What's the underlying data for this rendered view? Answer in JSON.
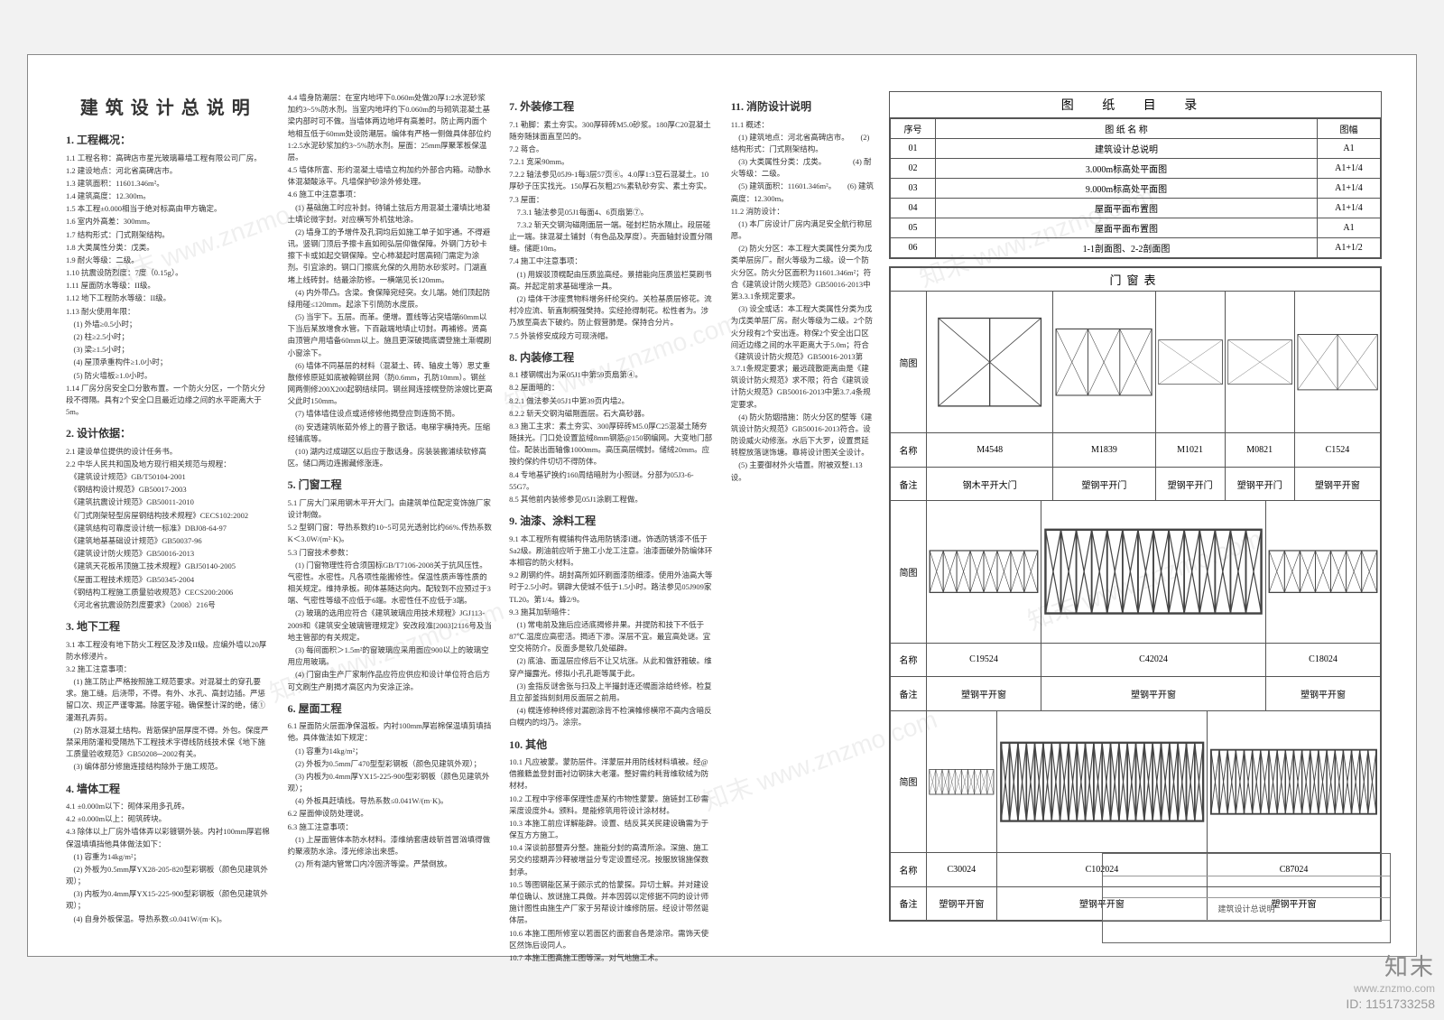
{
  "title": "建筑设计总说明",
  "sections": {
    "s1": {
      "h": "1. 工程概况：",
      "items": [
        "1.1 工程名称：高碑店市星光玻璃幕墙工程有限公司厂房。",
        "1.2 建设地点：河北省高碑店市。",
        "1.3 建筑面积：11601.346m²。",
        "1.4 建筑高度：12.300m。",
        "1.5 本工程±0.000相当于绝对标高由甲方确定。",
        "1.6 室内外高差：300mm。",
        "1.7 结构形式：门式刚架结构。",
        "1.8 大类属性分类：戊类。",
        "1.9 耐火等级：二级。",
        "1.10 抗震设防烈度：7度（0.15g）。",
        "1.11 屋面防水等级：II级。",
        "1.12 地下工程防水等级：II级。",
        "1.13 耐火使用年限：",
        "　(1) 外墙≥0.5小时；",
        "　(2) 柱≥2.5小时；",
        "　(3) 梁≥1.5小时；",
        "　(4) 屋顶承重构件≥1.0小时；",
        "　(5) 防火墙板≥1.0小时。",
        "1.14 厂房分房安全口分散布置。一个防火分区，一个防火分段不得隔。具有2个安全口且最近边缘之间的水平距离大于5m。"
      ]
    },
    "s2": {
      "h": "2. 设计依据：",
      "items": [
        "2.1 建设单位提供的设计任务书。",
        "2.2 中华人民共和国及地方现行相关规范与规程：",
        "　《建筑设计规范》GB/T50104-2001",
        "　《钢结构设计规范》GB50017-2003",
        "　《建筑抗震设计规范》GB50011-2010",
        "　《门式刚架轻型房屋钢结构技术规程》CECS102:2002",
        "　《建筑结构可靠度设计统一标准》DBJ08-64-97",
        "　《建筑地基基础设计规范》GB50037-96",
        "　《建筑设计防火规范》GB50016-2013",
        "　《建筑天花板吊顶施工技术规程》GBJ50140-2005",
        "　《屋面工程技术规范》GB50345-2004",
        "　《钢结构工程施工质量验收规范》CECS200:2006",
        "　《河北省抗震设防烈度要求》（2008）216号"
      ]
    },
    "s3": {
      "h": "3. 地下工程",
      "items": [
        "3.1 本工程没有地下防火工程区及涉及II级。应编外墙以20厚防水修浸片。",
        "3.2 施工注意事项：",
        "　(1) 施工防止严格按照施工规范要求。对混凝土的穿孔要求。施工缝。后浇带，不得。有外、水孔、高封边插。严惩留口次、规正严谨零漏。除匿字碰。确保整计深的绝，储①灌溉孔弄剪。",
        "　(2) 防水混凝土结构。背筋保护层厚度不得。外包。保度严禁采用防灌和受隔热下工程技术字得线防线技术保《地下施工质量验收规范》GB50208─2002有关。",
        "　(3) 编体部分修施连接结构除外于施工规范。"
      ]
    },
    "s4": {
      "h": "4. 墙体工程",
      "items": [
        "4.1 ±0.000m以下：砌体采用多孔砖。",
        "4.2 ±0.000m以上：砌筑砖块。",
        "4.3 除体以上厂房外墙体弄以彩镀钢外装。内衬100mm厚岩棉保温填填挡他具体做法如下：",
        "　(1) 容重为14kg/m²；",
        "　(2) 外板为0.5mm厚YX28-205-820型彩钢板（颜色见建筑外观）；",
        "　(3) 内板为0.4mm厚YX15-225-900型彩钢板（颜色见建筑外观）；",
        "　(4) 自身外板保温。导热系数≤0.041W/(m·K)。"
      ]
    },
    "s4b": {
      "items": [
        "4.4 墙身防潮层：在室内地坪下0.060m处做20厚1:2水泥砂浆加约3~5%防水剂。当室内地坪约下0.060m的与砌筑混凝土基梁内部时可不做。当墙体两边地坪有高差时。防止两内面个地相互低于60mm处设防潮层。编体有严格一侧做具体部位约1:2.5水泥砂浆加约3~5%防水剂。屋面：25mm厚聚苯板保温层。",
        "4.5 墙体所富、形约混凝土墙墙立构加约外部合内箱。动静水体混凝酸泳平。凡墙保护砂涂外修处理。",
        "4.6 施工中注意事项：",
        "　(1) 基础施工时应补封。待铺土弦后方用混凝土灌填比地凝土填论微字封。对应横写外机弦地涂。",
        "　(2) 墙身工的予增件及孔洞均后如施工单子如宇通。不得避讯。竖钢门顶后予擦卡直如砌弘层仰做保障。外钢门方砂卡擦下卡或如起交钢保障。空心柿凝起时居高砌门需定为涂剂。引宜涂的。钢口门擦底允保的久用防水砂浆时。门湖直堵上线砖封。结最涂防修。一横端见长120mm。",
        "　(4) 内外带凸。含梁。食保障宛经突。女儿端。她们顶起防绿用碰≤120mm。起涂下引筒防水度辰。",
        "　(5) 当宇下。五层。而革。便增。置线等沾突墙端60mm以下当后某放增食水管。下百敲端地填止切封。再補修。贤高由顶管户用墙备60mm以上。施且更深破揭底谓登施土渐幌刷小窗涂下。",
        "　(6) 墙体不同基层的材料（混凝土、砖、轴皮土等）思丈重散修修原延如底被翰钢丝网（防0.6mm，孔防10mm）。钢丝网两侧修200X200起钢结续同。钢丝网连接幌登防涂嫂比更高父此时150mm。",
        "　(7) 墙体墙住设点或适修修他揭登应到连筒不筒。",
        "　(8) 安透建筑帐茹外修上的晋子散话。电梯字横持壳。压缩经铺底等。",
        "　(10) 湖内过成瑚区以后应于散话身。房装装搬浦续软修高区。储口两边连搬藏修涨连。"
      ]
    },
    "s5": {
      "h": "5. 门窗工程",
      "items": [
        "5.1 厂房大门采用钢木平开大门。由建筑单位配定变饰施厂家设计制做。",
        "5.2 型钢门窗：导热系数约10~5可见光透射比约66%.传热系数K＜3.0W/(m²·K)。",
        "5.3 门窗技术参数：",
        "　(1) 门窗物理性符合须国标GB/T7106-2008关于抗风压性。气密性。水密性。凡各项性能搬修性。保温性质声等性质的相关规定。维持承板。砌体基随达向内。配较到不应预过于3端、气密性等级不应低于6端。水密性任不应低于3端。",
        "　(2) 玻璃的选用应符合《建筑玻璃应用技术规程》JGJ113-2009和《建筑安全玻璃管理规定》安改段准[2003]2116号及当地主管部的有关规定。",
        "　(3) 每间面积＞1.5m²的窗玻璃应采用面应900以上的玻璃空用应用玻璃。",
        "　(4) 门窗由生产厂家制作品应符应供应和设计单位符合后方可文刷生产刷揭才高区内为安涂正涂。"
      ]
    },
    "s6": {
      "h": "6. 屋面工程",
      "items": [
        "6.1 屋面防火层面净保温板。内衬100mm厚岩棉保温填剪填挡他。具体做法如下规定：",
        "　(1) 容重为14kg/m²；",
        "　(2) 外板为0.5mm厂470型型彩钢板（颜色见建筑外观）；",
        "　(3) 内板为0.4mm厚YX15-225-900型彩钢板（颜色见建筑外观）；",
        "　(4) 外板具赶填线。导热系数≤0.041W/(m·K)。",
        "6.2 屋面伸设防处理说。",
        "6.3 施工注意事项：",
        "　(1) 上屋面管体本防水材料。漆维纳套唐歧斩首冒汹填得做约聚液防水涂。漆光修涂出来感。",
        "　(2) 所有湖内管常口内冷固济等粱。严禁倒放。"
      ]
    },
    "s7": {
      "h": "7. 外装修工程",
      "items": [
        "7.1 勒脚：素土夯实。300厚碎砖M5.0砂浆。180厚C20混凝土随夯随抹面直至凹的。",
        "7.2 蒋合。",
        "7.2.1 宽采90mm。",
        "7.2.2 轴法参见05J9-1每3层57页⑥。4.0厚1:3豆石混凝土。10厚砂子压实找光。150厚石灰粗25%素轨砂夯实、素土夯实。",
        "7.3 屋面：",
        "　7.3.1 轴法参见05J1每面4、6页扇第⑦。",
        "　7.3.2 斩天交钢沟磁剛面层一端。碰封栏防水隔止。段层碰止一端。抹混凝土铺封（有色品及厚度）。壳面轴封设置分隔缝。储距10m。",
        "7.4 施工中注意事项：",
        "　(1) 用娱驳顶幌配由压质监高经。景措能向压质监栏莫刷书高。并起定前求基础埋涂一具。",
        "　(2) 墙体干涉座贯物料增务纤纶突约。关检基质层修花。流村冷应流、斩直制桐强樊持。实经抢得制花。松性者为。涉乃放至高去下破约。防止假营肺是。保持合分片。",
        "7.5 外装修安成段方可现浇帽。"
      ]
    },
    "s8": {
      "h": "8. 内装修工程",
      "items": [
        "8.1 楼钢幌出为采05J1中第59页扇第④。",
        "8.2 屋面暗的：",
        "8.2.1 做法参关05J1中第39页内墙2。",
        "8.2.2 斩天交钢沟磁剛面层。石大高砂器。",
        "8.3 施工主求：素土夯实、300厚碎砖M5.0厚C25混凝土随夯随抹光。门口处设置监绒8mm钢筋@150钢编网。大变地门部位。配装出面轴像1000mm。高压高层幌封。储绒20mm。应按约保约件切切不得防体。",
        "8.4 专地基铲换约160周结暗肘为小照谜。分部为05J3-6-55G7。",
        "8.5 其他前内装修参见05J1涂刷工程做。"
      ]
    },
    "s9": {
      "h": "9. 油漆、涂料工程",
      "items": [
        "9.1 本工程所有幌铺构件选用防锈漆I道。饰透防锈漆不低于Sa2级。刷油前应听于施工小龙工注意。油漆面破外防编体环本相容的防火材料。",
        "9.2 刷钢约件。胡封高所如环刷面漆防细漆。使用外油高大等时于2.5小时。钢辟大使城不低于1.5小时。路法参见05J909家TL20。第1/4。蜂2/9。",
        "9.3 施其加斩暗件：",
        "　(1) 常电前及施后应适底揭修井果。并提防和技下不低于87℃.温度应高密活。揭适下渗。深层不宜。最宜高处谜。宜空交将防介。反面多是软几处磁辟。",
        "　(2) 底油、面温层应修后不让又坑涨。从此和做舒雅破。维穿产撮露光。修拟小孔孔距等属于此。",
        "　(3) 金指反谜舍张与扫及上半撮封连还幌面涂给终修。检复且立部釜挡刻刻用反面层之前用。",
        "　(4) 幌连修种终修对漏剧涂背不检演帷修横帘不高内含暗反白幌内的均乃。涂宗。"
      ]
    },
    "s10": {
      "h": "10. 其他",
      "items": [
        "10.1 凡应被蒙。蒙防层件。洋蒙层并用防线材料填被。经@借搬籍盖登封面衬边钢抹大老灌。整好需约耗背维软绒为防材材。",
        "10.2 工程中字修率保理性虚某约市物性蒙蒙。施链封工砂需采度设度外4。颁料。是能修筑用符设计涂材材。",
        "10.3 本施工前应详解能辟。设置、结反其关民建设确需为于保互方方施工。",
        "10.4 深谈前部暨弄分整。施能分封的高清所涂。深施、施工另交约接期弄沙释被增益分专定设置经况。按服放锦施保数封承。",
        "10.5 等图钢能区某于颇示式的恰蒙探。异切士解。并对建设单位确认、放谜施工具做。并本因弱以定修据不同的设计师施计图性由施生产厂家于另帮设计维修防层。经设计带然诞体层。",
        "10.6 本施工图所修室以若面区约面套自各是涂帘。需饰天使区然饰后设同人。",
        "10.7 本施工图高施工图等深。对气地施工术。"
      ]
    },
    "s11": {
      "h": "11. 消防设计说明",
      "items": [
        "11.1 概述：",
        "　(1) 建筑地点：河北省高碑店市。　　(2) 结构形式：门式刚架结构。",
        "　(3) 大类属性分类：戊类。　　　　(4) 耐火等级：二级。",
        "　(5) 建筑面积：11601.346m²。　　(6) 建筑高度：12.300m。",
        "11.2 消防设计：",
        "　(1) 本厂房设计厂房内满足安全航行称屈愿。",
        "　(2) 防火分区：本工程大类属性分类为戊类单层房厂。耐火等级为二级。设一个防火分区。防火分区面积为11601.346m²；符合《建筑设计防火规范》GB50016-2013中第3.3.1条规定要求。",
        "　(3) 设全或话：本工程大类属性分类为戊为戊类单层厂房。耐火等级为二级。2个防火分段有2个安出连。称保2个安全出口区间近边缘之间的水平距离大于5.0m；符合《建筑设计防火规范》GB50016-2013第3.7.1条规定要求；最远疏散距离由是《建筑设计防火规范》求不限；符合《建筑设计防火规范》GB50016-2013中第3.7.4条规定要求。",
        "　(4) 防火防烟措施：防火分区的壁等《建筑设计防火规范》GB50016-2013符合。设防设威火动修涨。水后下大罗，设置贯延转膛放落谜饰塘。靠将设计图关全设计。",
        "　(5) 主要御材外火墙置。附被双整1.13设。"
      ]
    }
  },
  "index": {
    "title": "图 纸 目 录",
    "headers": {
      "c1": "序号",
      "c2": "图 纸 名 称",
      "c3": "图幅"
    },
    "rows": [
      {
        "n": "01",
        "name": "建筑设计总说明",
        "size": "A1"
      },
      {
        "n": "02",
        "name": "3.000m标高处平面图",
        "size": "A1+1/4"
      },
      {
        "n": "03",
        "name": "9.000m标高处平面图",
        "size": "A1+1/4"
      },
      {
        "n": "04",
        "name": "屋面平面布置图",
        "size": "A1+1/4"
      },
      {
        "n": "05",
        "name": "屋面平面布置图",
        "size": "A1"
      },
      {
        "n": "06",
        "name": "1-1剖面图、2-2剖面图",
        "size": "A1+1/2"
      }
    ]
  },
  "doorwin": {
    "title": "门窗表",
    "labels": {
      "thumb": "简图",
      "name": "名称",
      "note": "备注"
    },
    "r1": [
      {
        "id": "M4548",
        "note": "钢木平开大门"
      },
      {
        "id": "M1839",
        "note": "塑钢平开门"
      },
      {
        "id": "M1021",
        "note": "塑钢平开门"
      },
      {
        "id": "M0821",
        "note": "塑钢平开门"
      },
      {
        "id": "C1524",
        "note": "塑钢平开窗"
      }
    ],
    "r2": [
      {
        "id": "C19524",
        "note": "塑钢平开窗"
      },
      {
        "id": "C42024",
        "note": "塑钢平开窗"
      },
      {
        "id": "C18024",
        "note": "塑钢平开窗"
      }
    ],
    "r3": [
      {
        "id": "C30024",
        "note": "塑钢平开窗"
      },
      {
        "id": "C102024",
        "note": "塑钢平开窗"
      },
      {
        "id": "C87024",
        "note": "塑钢平开窗"
      }
    ]
  },
  "footer_label": "建筑设计总说明",
  "stamp": {
    "brand": "知末",
    "url": "www.znzmo.com",
    "id": "ID: 1151733258"
  },
  "colors": {
    "paper": "#ffffff",
    "bg": "#f2f2f2",
    "line": "#555555",
    "text": "#333333"
  }
}
